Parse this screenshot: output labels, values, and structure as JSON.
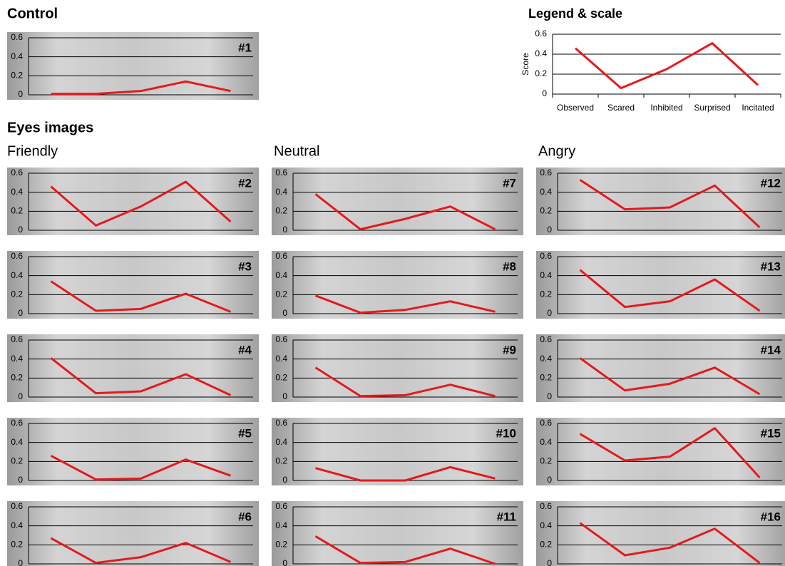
{
  "headings": {
    "control": "Control",
    "legend": "Legend & scale",
    "eyes": "Eyes images",
    "friendly": "Friendly",
    "neutral": "Neutral",
    "angry": "Angry"
  },
  "chart_data": [
    {
      "type": "line",
      "title": "#1",
      "values": [
        0.01,
        0.01,
        0.04,
        0.14,
        0.04
      ],
      "color": "#e41a1c",
      "ylim": [
        0,
        0.6
      ],
      "yticks": [
        0,
        0.2,
        0.4,
        0.6
      ],
      "grid": true
    },
    {
      "type": "line",
      "ylabel": "Score",
      "categories": [
        "Observed",
        "Scared",
        "Inhibited",
        "Surprised",
        "Incitated"
      ],
      "values": [
        0.46,
        0.06,
        0.25,
        0.51,
        0.09
      ],
      "color": "#e41a1c",
      "ylim": [
        0,
        0.6
      ],
      "yticks": [
        0,
        0.2,
        0.4,
        0.6
      ],
      "grid": true
    },
    {
      "type": "line",
      "title": "#2",
      "values": [
        0.46,
        0.05,
        0.25,
        0.51,
        0.09
      ],
      "color": "#e41a1c",
      "ylim": [
        0,
        0.6
      ],
      "yticks": [
        0,
        0.2,
        0.4,
        0.6
      ],
      "grid": true
    },
    {
      "type": "line",
      "title": "#3",
      "values": [
        0.34,
        0.03,
        0.05,
        0.21,
        0.02
      ],
      "color": "#e41a1c",
      "ylim": [
        0,
        0.6
      ],
      "yticks": [
        0,
        0.2,
        0.4,
        0.6
      ],
      "grid": true
    },
    {
      "type": "line",
      "title": "#4",
      "values": [
        0.41,
        0.04,
        0.06,
        0.24,
        0.02
      ],
      "color": "#e41a1c",
      "ylim": [
        0,
        0.6
      ],
      "yticks": [
        0,
        0.2,
        0.4,
        0.6
      ],
      "grid": true
    },
    {
      "type": "line",
      "title": "#5",
      "values": [
        0.26,
        0.01,
        0.02,
        0.22,
        0.05
      ],
      "color": "#e41a1c",
      "ylim": [
        0,
        0.6
      ],
      "yticks": [
        0,
        0.2,
        0.4,
        0.6
      ],
      "grid": true
    },
    {
      "type": "line",
      "title": "#6",
      "values": [
        0.27,
        0.01,
        0.07,
        0.22,
        0.02
      ],
      "color": "#e41a1c",
      "ylim": [
        0,
        0.6
      ],
      "yticks": [
        0,
        0.2,
        0.4,
        0.6
      ],
      "grid": true
    },
    {
      "type": "line",
      "title": "#7",
      "values": [
        0.38,
        0.01,
        0.12,
        0.25,
        0.01
      ],
      "color": "#e41a1c",
      "ylim": [
        0,
        0.6
      ],
      "yticks": [
        0,
        0.2,
        0.4,
        0.6
      ],
      "grid": true
    },
    {
      "type": "line",
      "title": "#8",
      "values": [
        0.19,
        0.01,
        0.04,
        0.13,
        0.02
      ],
      "color": "#e41a1c",
      "ylim": [
        0,
        0.6
      ],
      "yticks": [
        0,
        0.2,
        0.4,
        0.6
      ],
      "grid": true
    },
    {
      "type": "line",
      "title": "#9",
      "values": [
        0.31,
        0.01,
        0.02,
        0.13,
        0.01
      ],
      "color": "#e41a1c",
      "ylim": [
        0,
        0.6
      ],
      "yticks": [
        0,
        0.2,
        0.4,
        0.6
      ],
      "grid": true
    },
    {
      "type": "line",
      "title": "#10",
      "values": [
        0.13,
        0,
        0,
        0.14,
        0.02
      ],
      "color": "#e41a1c",
      "ylim": [
        0,
        0.6
      ],
      "yticks": [
        0,
        0.2,
        0.4,
        0.6
      ],
      "grid": true
    },
    {
      "type": "line",
      "title": "#11",
      "values": [
        0.29,
        0.01,
        0.02,
        0.16,
        0
      ],
      "color": "#e41a1c",
      "ylim": [
        0,
        0.6
      ],
      "yticks": [
        0,
        0.2,
        0.4,
        0.6
      ],
      "grid": true
    },
    {
      "type": "line",
      "title": "#12",
      "values": [
        0.53,
        0.22,
        0.24,
        0.47,
        0.03
      ],
      "color": "#e41a1c",
      "ylim": [
        0,
        0.6
      ],
      "yticks": [
        0,
        0.2,
        0.4,
        0.6
      ],
      "grid": true
    },
    {
      "type": "line",
      "title": "#13",
      "values": [
        0.46,
        0.07,
        0.13,
        0.36,
        0.03
      ],
      "color": "#e41a1c",
      "ylim": [
        0,
        0.6
      ],
      "yticks": [
        0,
        0.2,
        0.4,
        0.6
      ],
      "grid": true
    },
    {
      "type": "line",
      "title": "#14",
      "values": [
        0.41,
        0.07,
        0.14,
        0.31,
        0.03
      ],
      "color": "#e41a1c",
      "ylim": [
        0,
        0.6
      ],
      "yticks": [
        0,
        0.2,
        0.4,
        0.6
      ],
      "grid": true
    },
    {
      "type": "line",
      "title": "#15",
      "values": [
        0.49,
        0.21,
        0.25,
        0.55,
        0.03
      ],
      "color": "#e41a1c",
      "ylim": [
        0,
        0.6
      ],
      "yticks": [
        0,
        0.2,
        0.4,
        0.6
      ],
      "grid": true
    },
    {
      "type": "line",
      "title": "#16",
      "values": [
        0.43,
        0.09,
        0.17,
        0.37,
        0.01
      ],
      "color": "#e41a1c",
      "ylim": [
        0,
        0.6
      ],
      "yticks": [
        0,
        0.2,
        0.4,
        0.6
      ],
      "grid": true
    }
  ]
}
